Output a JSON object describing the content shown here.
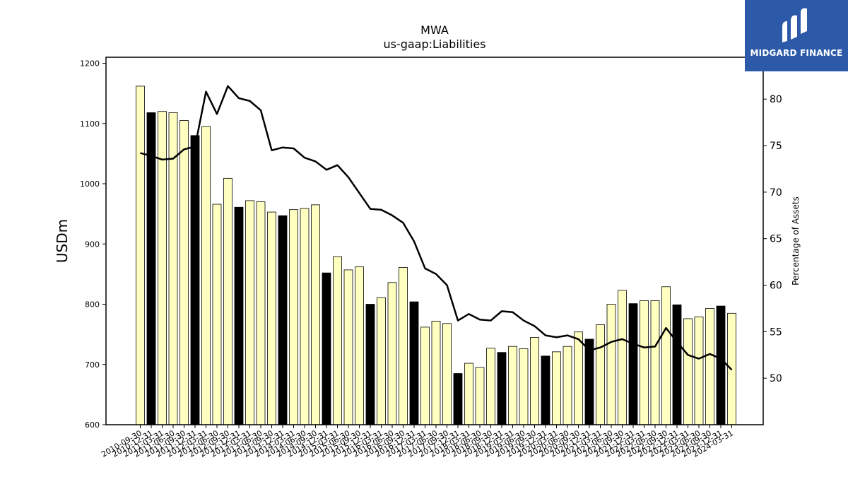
{
  "chart_data": {
    "type": "bar",
    "title": "MWA",
    "subtitle": "us-gaap:Liabilities",
    "ylabel": "USDm",
    "y2label": "Percentage of Assets",
    "ylim": [
      600,
      1210
    ],
    "y2lim": [
      45,
      84.5
    ],
    "yticks": [
      600,
      700,
      800,
      900,
      1000,
      1100,
      1200
    ],
    "y2ticks": [
      50,
      55,
      60,
      65,
      70,
      75,
      80
    ],
    "categories": [
      "2010-09-30",
      "2010-12-31",
      "2011-03-31",
      "2011-06-30",
      "2011-09-30",
      "2011-12-31",
      "2012-03-31",
      "2012-06-30",
      "2012-09-30",
      "2012-12-31",
      "2013-03-31",
      "2013-06-30",
      "2013-09-30",
      "2013-12-31",
      "2014-03-31",
      "2014-06-30",
      "2014-09-30",
      "2014-12-31",
      "2015-03-31",
      "2015-06-30",
      "2015-09-30",
      "2015-12-31",
      "2016-03-31",
      "2016-06-30",
      "2016-09-30",
      "2016-12-31",
      "2017-03-31",
      "2017-06-30",
      "2017-09-30",
      "2017-12-31",
      "2018-03-31",
      "2018-06-30",
      "2018-09-30",
      "2018-12-31",
      "2019-03-31",
      "2019-06-30",
      "2019-09-30",
      "2019-12-31",
      "2020-03-31",
      "2020-06-30",
      "2020-09-30",
      "2020-12-31",
      "2021-03-31",
      "2021-06-30",
      "2021-09-30",
      "2021-12-31",
      "2022-03-31",
      "2022-06-30",
      "2022-09-30",
      "2022-12-31",
      "2023-03-31",
      "2023-06-30",
      "2023-09-30",
      "2023-12-31",
      "2024-03-31"
    ],
    "series": [
      {
        "type": "bar",
        "values": [
          1162,
          1118,
          1120,
          1118,
          1105,
          1080,
          1095,
          966,
          1009,
          961,
          972,
          970,
          953,
          947,
          957,
          959,
          965,
          852,
          879,
          857,
          862,
          800,
          811,
          836,
          861,
          804,
          762,
          772,
          768,
          685,
          702,
          695,
          727,
          720,
          730,
          726,
          745,
          714,
          721,
          730,
          754,
          742,
          766,
          800,
          823,
          801,
          806,
          806,
          829,
          799,
          776,
          779,
          793,
          797,
          785
        ],
        "highlight": [
          false,
          true,
          false,
          false,
          false,
          true,
          false,
          false,
          false,
          true,
          false,
          false,
          false,
          true,
          false,
          false,
          false,
          true,
          false,
          false,
          false,
          true,
          false,
          false,
          false,
          true,
          false,
          false,
          false,
          true,
          false,
          false,
          false,
          true,
          false,
          false,
          false,
          true,
          false,
          false,
          false,
          true,
          false,
          false,
          false,
          true,
          false,
          false,
          false,
          true,
          false,
          false,
          false,
          true,
          false
        ],
        "fill": "#ffffc0",
        "highlight_fill": "#000000"
      },
      {
        "type": "line",
        "axis": "right",
        "values": [
          74.2,
          73.9,
          73.5,
          73.6,
          74.6,
          74.9,
          80.8,
          78.4,
          81.4,
          80.1,
          79.8,
          78.8,
          74.5,
          74.8,
          74.7,
          73.7,
          73.3,
          72.4,
          72.9,
          71.6,
          69.9,
          68.2,
          68.1,
          67.5,
          66.7,
          64.7,
          61.8,
          61.2,
          60.0,
          56.2,
          56.9,
          56.3,
          56.2,
          57.2,
          57.1,
          56.2,
          55.6,
          54.6,
          54.4,
          54.6,
          54.2,
          53.0,
          53.3,
          53.9,
          54.2,
          53.7,
          53.3,
          53.4,
          55.4,
          53.9,
          52.5,
          52.1,
          52.6,
          52.1,
          50.9
        ],
        "color": "#000000"
      }
    ],
    "grid": false
  },
  "logo": {
    "text": "MIDGARD FINANCE",
    "bg_color": "#2c5aa8"
  }
}
